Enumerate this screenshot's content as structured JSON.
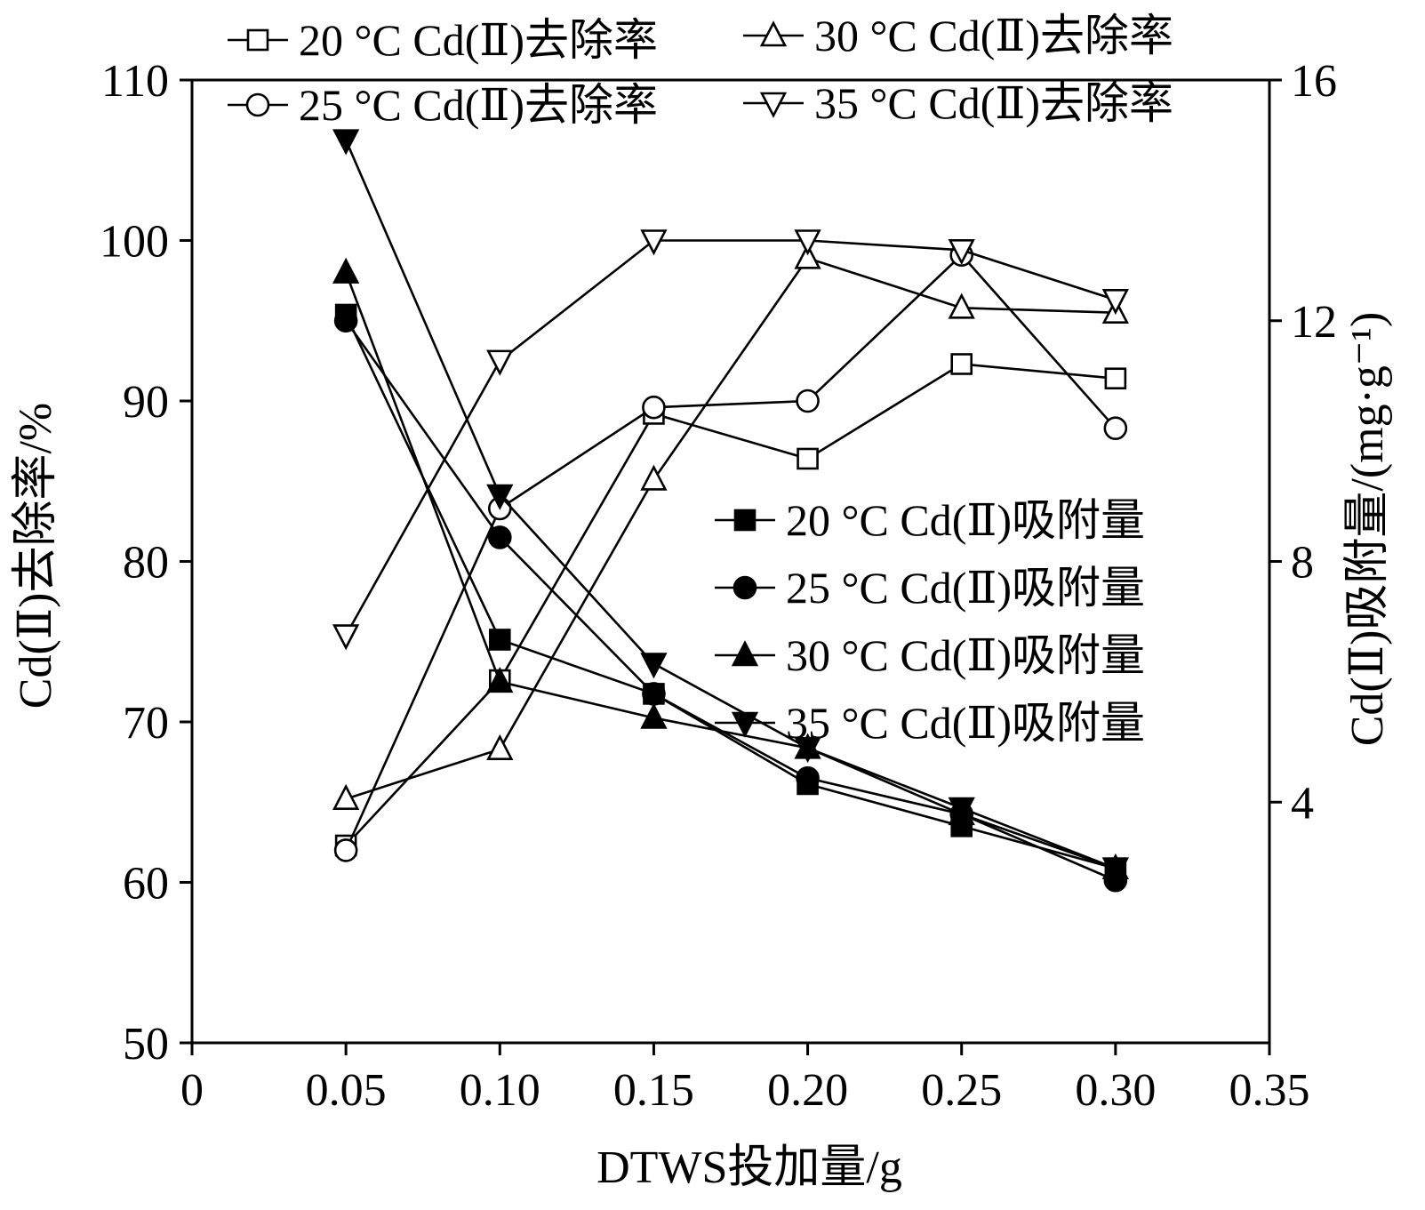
{
  "chart_data": {
    "type": "line",
    "xlabel": "DTWS投加量/g",
    "ylabel_left": "Cd(Ⅱ)去除率/%",
    "ylabel_right": "Cd(Ⅱ)吸附量/(mg·g⁻¹)",
    "xlim": [
      0,
      0.35
    ],
    "ylim_left": [
      50,
      110
    ],
    "ylim_right": [
      0,
      16
    ],
    "x_ticks": [
      "0",
      "0.05",
      "0.10",
      "0.15",
      "0.20",
      "0.25",
      "0.30",
      "0.35"
    ],
    "y_left_ticks": [
      "50",
      "60",
      "70",
      "80",
      "90",
      "100",
      "110"
    ],
    "y_right_ticks": [
      "4",
      "8",
      "12",
      "16"
    ],
    "grid": false,
    "x": [
      0.05,
      0.1,
      0.15,
      0.2,
      0.25,
      0.3
    ],
    "removal_series": [
      {
        "name": "20 °C Cd(Ⅱ)去除率",
        "marker": "square-open",
        "axis": "left",
        "values": [
          62.3,
          72.6,
          89.2,
          86.4,
          92.3,
          91.4
        ]
      },
      {
        "name": "25 °C Cd(Ⅱ)去除率",
        "marker": "circle-open",
        "axis": "left",
        "values": [
          62.0,
          83.3,
          89.6,
          90.0,
          99.1,
          88.3
        ]
      },
      {
        "name": "30 °C Cd(Ⅱ)去除率",
        "marker": "triangle-up-open",
        "axis": "left",
        "values": [
          65.2,
          68.3,
          85.1,
          98.9,
          95.8,
          95.5
        ]
      },
      {
        "name": "35 °C Cd(Ⅱ)去除率",
        "marker": "triangle-down-open",
        "axis": "left",
        "values": [
          75.4,
          92.5,
          100.0,
          100.0,
          99.4,
          96.3
        ]
      }
    ],
    "adsorption_series": [
      {
        "name": "20 °C Cd(Ⅱ)吸附量",
        "marker": "square-filled",
        "axis": "right",
        "values": [
          12.1,
          6.7,
          5.8,
          4.3,
          3.6,
          2.9
        ]
      },
      {
        "name": "25 °C Cd(Ⅱ)吸附量",
        "marker": "circle-filled",
        "axis": "right",
        "values": [
          12.0,
          8.4,
          5.8,
          4.4,
          3.8,
          2.7
        ]
      },
      {
        "name": "30 °C Cd(Ⅱ)吸附量",
        "marker": "triangle-up-filled",
        "axis": "right",
        "values": [
          12.8,
          6.0,
          5.4,
          4.9,
          3.8,
          2.9
        ]
      },
      {
        "name": "35 °C Cd(Ⅱ)吸附量",
        "marker": "triangle-down-filled",
        "axis": "right",
        "values": [
          15.0,
          9.1,
          6.3,
          4.9,
          3.9,
          2.9
        ]
      }
    ],
    "legend_top_placement": "top",
    "legend_inner_placement": "center-right"
  }
}
